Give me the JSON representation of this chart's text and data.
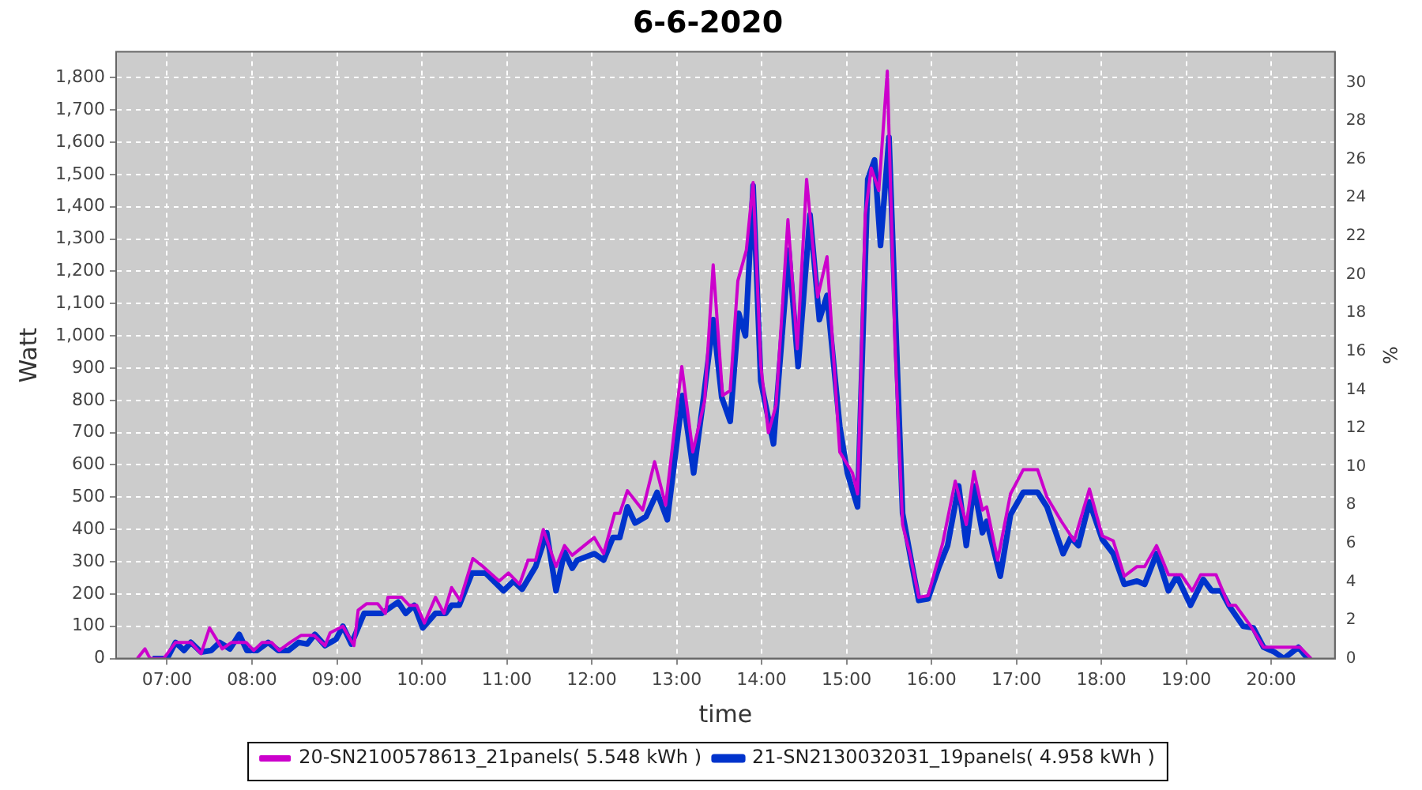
{
  "chart_data": {
    "type": "line",
    "title": "6-6-2020",
    "xlabel": "time",
    "ylabel": "Watt",
    "y2label": "%",
    "xlim": [
      6.4,
      20.75
    ],
    "xticks": [
      {
        "value": 7,
        "label": "07:00"
      },
      {
        "value": 8,
        "label": "08:00"
      },
      {
        "value": 9,
        "label": "09:00"
      },
      {
        "value": 10,
        "label": "10:00"
      },
      {
        "value": 11,
        "label": "11:00"
      },
      {
        "value": 12,
        "label": "12:00"
      },
      {
        "value": 13,
        "label": "13:00"
      },
      {
        "value": 14,
        "label": "14:00"
      },
      {
        "value": 15,
        "label": "15:00"
      },
      {
        "value": 16,
        "label": "16:00"
      },
      {
        "value": 17,
        "label": "17:00"
      },
      {
        "value": 18,
        "label": "18:00"
      },
      {
        "value": 19,
        "label": "19:00"
      },
      {
        "value": 20,
        "label": "20:00"
      }
    ],
    "ylim": [
      0,
      1880
    ],
    "yticks": [
      0,
      100,
      200,
      300,
      400,
      500,
      600,
      700,
      800,
      900,
      {
        "value": 1000,
        "label": "1,000"
      },
      {
        "value": 1100,
        "label": "1,100"
      },
      {
        "value": 1200,
        "label": "1,200"
      },
      {
        "value": 1300,
        "label": "1,300"
      },
      {
        "value": 1400,
        "label": "1,400"
      },
      {
        "value": 1500,
        "label": "1,500"
      },
      {
        "value": 1600,
        "label": "1,600"
      },
      {
        "value": 1700,
        "label": "1,700"
      },
      {
        "value": 1800,
        "label": "1,800"
      }
    ],
    "y2lim": [
      0,
      31.6
    ],
    "y2ticks": [
      0,
      2,
      4,
      6,
      8,
      10,
      12,
      14,
      16,
      18,
      20,
      22,
      24,
      26,
      28,
      30
    ],
    "grid": true,
    "legend": "bottom",
    "marker": "none",
    "line_style": "solid",
    "series": [
      {
        "name": "20-SN2100578613_21panels( 5.548 kWh )",
        "color": "#cc00cc",
        "x": [
          6.65,
          6.74,
          6.8,
          6.96,
          7.1,
          7.28,
          7.4,
          7.5,
          7.65,
          7.76,
          7.93,
          8.02,
          8.12,
          8.23,
          8.32,
          8.45,
          8.58,
          8.73,
          8.86,
          8.92,
          9.07,
          9.2,
          9.25,
          9.35,
          9.48,
          9.57,
          9.6,
          9.76,
          9.85,
          9.94,
          10.03,
          10.16,
          10.26,
          10.35,
          10.45,
          10.6,
          10.72,
          10.91,
          11.02,
          11.15,
          11.25,
          11.34,
          11.43,
          11.58,
          11.68,
          11.77,
          12.03,
          12.14,
          12.27,
          12.33,
          12.42,
          12.6,
          12.74,
          12.87,
          13.06,
          13.19,
          13.33,
          13.43,
          13.54,
          13.63,
          13.72,
          13.82,
          13.9,
          13.99,
          14.08,
          14.17,
          14.31,
          14.42,
          14.53,
          14.66,
          14.77,
          14.92,
          15.07,
          15.13,
          15.22,
          15.29,
          15.38,
          15.48,
          15.57,
          15.66,
          15.75,
          15.85,
          15.96,
          16.13,
          16.28,
          16.41,
          16.5,
          16.6,
          16.65,
          16.78,
          16.93,
          17.08,
          17.25,
          17.36,
          17.53,
          17.68,
          17.86,
          18.01,
          18.14,
          18.27,
          18.42,
          18.51,
          18.65,
          18.79,
          18.94,
          19.07,
          19.17,
          19.35,
          19.5,
          19.58,
          19.76,
          19.91,
          20.1,
          20.34,
          20.47
        ],
        "values": [
          0,
          30,
          0,
          0,
          50,
          50,
          15,
          95,
          30,
          50,
          50,
          25,
          50,
          50,
          25,
          50,
          72,
          72,
          40,
          80,
          100,
          40,
          150,
          170,
          170,
          140,
          190,
          190,
          165,
          165,
          110,
          190,
          140,
          220,
          180,
          310,
          285,
          240,
          265,
          230,
          305,
          305,
          400,
          285,
          350,
          320,
          375,
          325,
          450,
          450,
          520,
          460,
          610,
          475,
          905,
          640,
          800,
          1220,
          815,
          830,
          1170,
          1265,
          1475,
          910,
          700,
          785,
          1360,
          960,
          1485,
          1120,
          1245,
          640,
          575,
          510,
          1375,
          1520,
          1450,
          1820,
          975,
          415,
          320,
          190,
          195,
          355,
          550,
          415,
          580,
          460,
          470,
          305,
          510,
          585,
          585,
          500,
          425,
          365,
          525,
          380,
          365,
          255,
          285,
          285,
          350,
          260,
          260,
          210,
          260,
          260,
          165,
          165,
          100,
          35,
          35,
          35,
          0
        ]
      },
      {
        "name": "21-SN2130032031_19panels( 4.958 kWh )",
        "color": "#0033cc",
        "x": [
          6.83,
          7.0,
          7.1,
          7.2,
          7.28,
          7.4,
          7.52,
          7.62,
          7.74,
          7.85,
          7.94,
          8.06,
          8.19,
          8.31,
          8.43,
          8.55,
          8.65,
          8.74,
          8.86,
          8.99,
          9.07,
          9.17,
          9.32,
          9.53,
          9.72,
          9.81,
          9.91,
          10.01,
          10.16,
          10.28,
          10.35,
          10.44,
          10.59,
          10.75,
          10.96,
          11.08,
          11.18,
          11.34,
          11.47,
          11.58,
          11.68,
          11.77,
          11.83,
          12.03,
          12.14,
          12.25,
          12.33,
          12.42,
          12.51,
          12.64,
          12.77,
          12.89,
          13.07,
          13.2,
          13.32,
          13.43,
          13.53,
          13.63,
          13.73,
          13.81,
          13.9,
          13.99,
          14.14,
          14.32,
          14.43,
          14.57,
          14.68,
          14.77,
          14.92,
          15.01,
          15.13,
          15.25,
          15.33,
          15.4,
          15.5,
          15.57,
          15.66,
          15.76,
          15.85,
          15.96,
          16.09,
          16.19,
          16.32,
          16.41,
          16.5,
          16.6,
          16.65,
          16.81,
          16.93,
          17.08,
          17.25,
          17.36,
          17.55,
          17.64,
          17.73,
          17.86,
          18.01,
          18.14,
          18.27,
          18.42,
          18.51,
          18.65,
          18.79,
          18.89,
          19.05,
          19.2,
          19.3,
          19.41,
          19.5,
          19.67,
          19.79,
          19.91,
          20.04,
          20.15,
          20.32,
          20.43
        ],
        "values": [
          0,
          0,
          50,
          25,
          50,
          20,
          25,
          50,
          30,
          75,
          25,
          25,
          50,
          25,
          25,
          50,
          45,
          75,
          40,
          60,
          100,
          45,
          140,
          140,
          175,
          140,
          165,
          95,
          140,
          140,
          165,
          165,
          265,
          265,
          210,
          240,
          215,
          285,
          390,
          210,
          330,
          280,
          305,
          325,
          305,
          375,
          375,
          470,
          420,
          440,
          515,
          430,
          815,
          575,
          815,
          1050,
          810,
          735,
          1070,
          1000,
          1465,
          860,
          665,
          1265,
          905,
          1375,
          1050,
          1125,
          720,
          575,
          470,
          1485,
          1545,
          1280,
          1615,
          1100,
          450,
          305,
          180,
          185,
          285,
          350,
          535,
          350,
          535,
          390,
          425,
          255,
          445,
          515,
          515,
          470,
          325,
          375,
          350,
          485,
          370,
          325,
          230,
          240,
          230,
          325,
          210,
          255,
          165,
          245,
          210,
          210,
          165,
          100,
          95,
          35,
          20,
          0,
          35,
          0
        ]
      }
    ]
  }
}
